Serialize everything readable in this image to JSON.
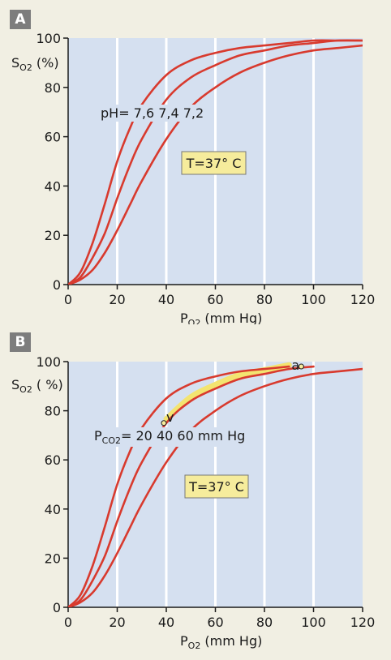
{
  "colors": {
    "plot_bg": "#d5e0f0",
    "grid": "#ffffff",
    "curve": "#d83a2e",
    "temp_box": "#f6ec9c",
    "page_bg": "#f1efe3",
    "label_bg": "#7d7d7d",
    "yellow_band": "#f3e470"
  },
  "chart_data": [
    {
      "panel_label": "A",
      "type": "line",
      "ylabel_main": "S",
      "ylabel_sub": "O2",
      "ylabel_unit": " (%)",
      "xlabel_main": "P",
      "xlabel_sub": "O2",
      "xlabel_unit": " (mm Hg)",
      "xlim": [
        0,
        120
      ],
      "ylim": [
        0,
        100
      ],
      "xticks": [
        "0",
        "20",
        "40",
        "60",
        "80",
        "100",
        "120"
      ],
      "yticks": [
        "0",
        "20",
        "40",
        "60",
        "80",
        "100"
      ],
      "grid": true,
      "temperature_label": "T=37° C",
      "series_annotation": "pH= 7,6 7,4 7,2",
      "series": [
        {
          "name": "pH 7,6",
          "x": [
            0,
            5,
            10,
            15,
            20,
            25,
            30,
            40,
            50,
            60,
            70,
            80,
            90,
            100,
            110,
            120
          ],
          "y": [
            0,
            5,
            17,
            33,
            50,
            63,
            73,
            85,
            91,
            94,
            96,
            97,
            98,
            99,
            99,
            99
          ]
        },
        {
          "name": "pH 7,4",
          "x": [
            0,
            5,
            10,
            15,
            20,
            25,
            30,
            40,
            50,
            60,
            70,
            80,
            90,
            100,
            110,
            120
          ],
          "y": [
            0,
            3,
            11,
            21,
            35,
            48,
            59,
            75,
            84,
            89,
            93,
            95,
            97,
            98,
            99,
            99
          ]
        },
        {
          "name": "pH 7,2",
          "x": [
            0,
            5,
            10,
            15,
            20,
            25,
            30,
            40,
            50,
            60,
            70,
            80,
            90,
            100,
            110,
            120
          ],
          "y": [
            0,
            2,
            6,
            13,
            22,
            32,
            42,
            59,
            72,
            80,
            86,
            90,
            93,
            95,
            96,
            97
          ]
        }
      ]
    },
    {
      "panel_label": "B",
      "type": "line",
      "ylabel_main": "S",
      "ylabel_sub": "O2",
      "ylabel_unit": " ( %)",
      "xlabel_main": "P",
      "xlabel_sub": "O2",
      "xlabel_unit": " (mm Hg)",
      "xlim": [
        0,
        120
      ],
      "ylim": [
        0,
        100
      ],
      "xticks": [
        "0",
        "20",
        "40",
        "60",
        "80",
        "100",
        "120"
      ],
      "yticks": [
        "0",
        "20",
        "40",
        "60",
        "80",
        "100"
      ],
      "grid": true,
      "temperature_label": "T=37° C",
      "series_annotation_main": "P",
      "series_annotation_sub": "CO2",
      "series_annotation_rest": "= 20  40  60 mm Hg",
      "point_a_label": "a",
      "point_v_label": "v",
      "point_a": {
        "x": 95,
        "y": 98
      },
      "point_v": {
        "x": 39,
        "y": 75
      },
      "series": [
        {
          "name": "PCO2 20 mm Hg",
          "x": [
            0,
            5,
            10,
            15,
            20,
            25,
            30,
            40,
            50,
            60,
            70,
            80,
            90
          ],
          "y": [
            0,
            5,
            17,
            33,
            50,
            63,
            73,
            85,
            91,
            94,
            96,
            97,
            98
          ]
        },
        {
          "name": "PCO2 40 mm Hg",
          "x": [
            0,
            5,
            10,
            15,
            20,
            25,
            30,
            40,
            50,
            60,
            70,
            80,
            90,
            100
          ],
          "y": [
            0,
            3,
            11,
            21,
            35,
            48,
            59,
            75,
            84,
            89,
            93,
            95,
            97,
            98
          ]
        },
        {
          "name": "PCO2 60 mm Hg",
          "x": [
            0,
            5,
            10,
            15,
            20,
            25,
            30,
            40,
            50,
            60,
            70,
            80,
            90,
            100,
            110,
            120
          ],
          "y": [
            0,
            2,
            6,
            13,
            22,
            32,
            42,
            59,
            72,
            80,
            86,
            90,
            93,
            95,
            96,
            97
          ]
        }
      ]
    }
  ]
}
